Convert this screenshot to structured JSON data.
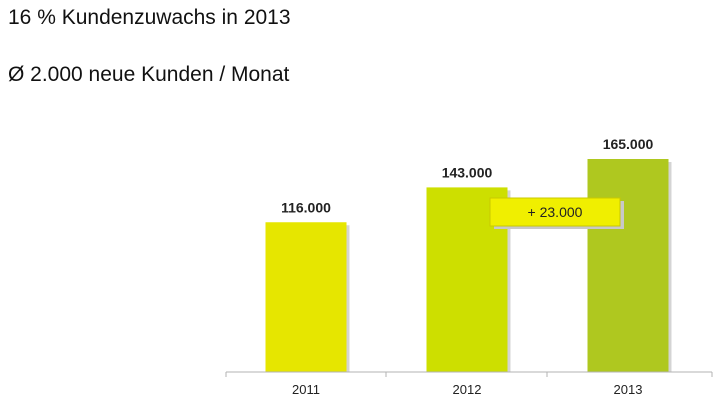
{
  "headline_1": "16 % Kundenzuwachs in 2013",
  "headline_2": "Ø 2.000 neue Kunden / Monat",
  "chart_data": {
    "type": "bar",
    "categories": [
      "2011",
      "2012",
      "2013"
    ],
    "values": [
      116000,
      143000,
      165000
    ],
    "data_labels": [
      "116.000",
      "143.000",
      "165.000"
    ],
    "bar_colors": [
      "#e6e600",
      "#cddf00",
      "#afc81f"
    ],
    "ylim": [
      0,
      165000
    ],
    "grid": false,
    "legend": "none",
    "annotation": {
      "text": "+ 23.000",
      "fill": "#f0ef00"
    }
  }
}
